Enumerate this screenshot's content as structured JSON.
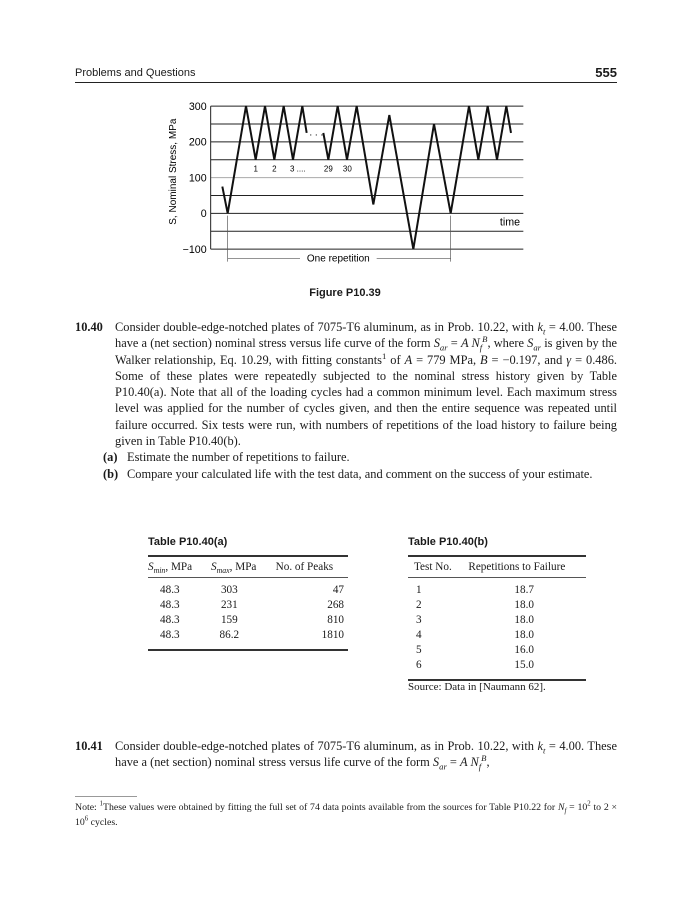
{
  "header": {
    "title": "Problems and Questions",
    "page_number": "555"
  },
  "figure": {
    "caption": "Figure P10.39",
    "y_axis_label": "S, Nominal Stress, MPa",
    "y_ticks": [
      "300",
      "200",
      "100",
      "0",
      "−100"
    ],
    "x_axis_label": "time",
    "cycle_labels": [
      "1",
      "2",
      "3 ....",
      "29",
      "30"
    ],
    "gap_dots": ". . .",
    "repetition_label": "One repetition",
    "stress_history_mpa": [
      75,
      0,
      300,
      150,
      300,
      150,
      300,
      150,
      300,
      225,
      null,
      225,
      150,
      300,
      150,
      300,
      25,
      275,
      -100,
      250,
      0,
      300,
      150,
      300,
      150,
      300,
      225
    ]
  },
  "problem_1040": {
    "number": "10.40",
    "text": [
      {
        "t": "Consider double-edge-notched plates of 7075-T6 aluminum, as in Prob. 10.22, with "
      },
      {
        "m": "k",
        "sub": "t"
      },
      {
        "t": " = 4.00. These have a (net section) nominal stress versus life curve of the form "
      },
      {
        "m": "S",
        "sub": "ar"
      },
      {
        "t": " = "
      },
      {
        "m": "A N",
        "sub": "f",
        "sup": "B"
      },
      {
        "t": ", where "
      },
      {
        "m": "S",
        "sub": "ar"
      },
      {
        "t": " is given by the Walker relationship, Eq. 10.29, with fitting constants"
      },
      {
        "sup": "1"
      },
      {
        "t": " of "
      },
      {
        "m": "A"
      },
      {
        "t": " = 779 MPa, "
      },
      {
        "m": "B"
      },
      {
        "t": " = −0.197, and "
      },
      {
        "m": "γ"
      },
      {
        "t": " = 0.486. Some of these plates were repeatedly subjected to the nominal stress history given by Table P10.40(a). Note that all of the loading cycles had a common minimum level. Each maximum stress level was applied for the number of cycles given, and then the entire sequence was repeated until failure occurred. Six tests were run, with numbers of repetitions of the load history to failure being given in Table P10.40(b)."
      }
    ],
    "parts": [
      {
        "label": "(a)",
        "text": "Estimate the number of repetitions to failure."
      },
      {
        "label": "(b)",
        "text": "Compare your calculated life with the test data, and comment on the success of your estimate."
      }
    ]
  },
  "table_a": {
    "title": "Table P10.40(a)",
    "headers": [
      {
        "m": "S",
        "sub": "min",
        "t": ", MPa"
      },
      {
        "m": "S",
        "sub": "max",
        "t": ", MPa"
      },
      {
        "t": "No. of Peaks"
      }
    ],
    "rows": [
      [
        "48.3",
        "303",
        "47"
      ],
      [
        "48.3",
        "231",
        "268"
      ],
      [
        "48.3",
        "159",
        "810"
      ],
      [
        "48.3",
        "86.2",
        "1810"
      ]
    ]
  },
  "table_b": {
    "title": "Table P10.40(b)",
    "headers": [
      "Test No.",
      "Repetitions to Failure"
    ],
    "rows": [
      [
        "1",
        "18.7"
      ],
      [
        "2",
        "18.0"
      ],
      [
        "3",
        "18.0"
      ],
      [
        "4",
        "18.0"
      ],
      [
        "5",
        "16.0"
      ],
      [
        "6",
        "15.0"
      ]
    ],
    "source": "Source: Data in [Naumann 62]."
  },
  "problem_1041": {
    "number": "10.41",
    "text": [
      {
        "t": "Consider double-edge-notched plates of 7075-T6 aluminum, as in Prob. 10.22, with "
      },
      {
        "m": "k",
        "sub": "t"
      },
      {
        "t": " = 4.00. These have a (net section) nominal stress versus life curve of the form "
      },
      {
        "m": "S",
        "sub": "ar"
      },
      {
        "t": " = "
      },
      {
        "m": "A N",
        "sub": "f",
        "sup": "B"
      },
      {
        "t": ","
      }
    ]
  },
  "footnote": {
    "text": [
      {
        "t": "Note: "
      },
      {
        "sup": "1"
      },
      {
        "t": "These values were obtained by fitting the full set of 74 data points available from the sources for Table P10.22 for "
      },
      {
        "m": "N",
        "sub": "f"
      },
      {
        "t": " = 10"
      },
      {
        "sup": "2"
      },
      {
        "t": " to 2 × 10"
      },
      {
        "sup": "6"
      },
      {
        "t": " cycles."
      }
    ]
  }
}
